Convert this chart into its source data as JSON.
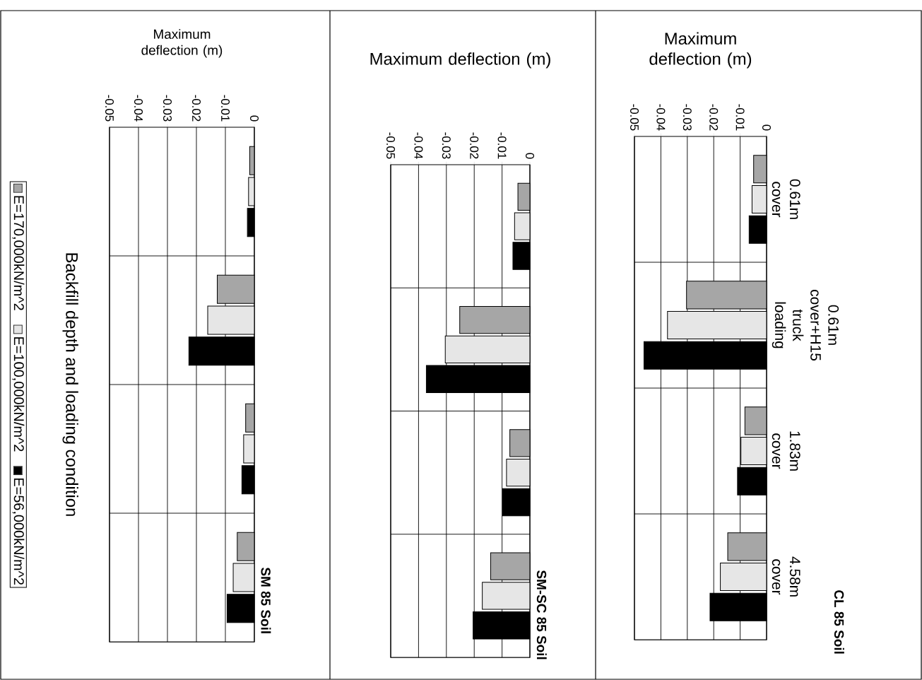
{
  "chart_data": [
    {
      "type": "bar",
      "orientation": "horizontal",
      "title": "CL 85 Soil",
      "xlabel": "Maximum deflection (m)",
      "categories": [
        "0.61m cover",
        "0.61m cover+H15 truck loading",
        "1.83m cover",
        "4.58m cover"
      ],
      "xlim": [
        -0.05,
        0
      ],
      "xticks": [
        -0.05,
        -0.04,
        -0.03,
        -0.02,
        -0.01,
        0
      ],
      "grid": true,
      "series": [
        {
          "color": "#a6a6a6",
          "values": [
            -0.0049,
            -0.0303,
            -0.0082,
            -0.0147
          ]
        },
        {
          "color": "#e6e6e6",
          "values": [
            -0.0055,
            -0.0375,
            -0.0097,
            -0.0175
          ]
        },
        {
          "color": "#000000",
          "values": [
            -0.0066,
            -0.0464,
            -0.011,
            -0.0214
          ]
        }
      ]
    },
    {
      "type": "bar",
      "orientation": "horizontal",
      "title": "SM-SC 85 Soil",
      "xlabel": "Maximum deflection (m)",
      "categories": [
        null,
        null,
        null,
        null
      ],
      "tick_labels": "x",
      "xlim": [
        -0.05,
        0
      ],
      "xticks": [
        -0.05,
        -0.04,
        -0.03,
        -0.02,
        -0.01,
        0
      ],
      "grid": true,
      "series": [
        {
          "color": "#a6a6a6",
          "values": [
            -0.0043,
            -0.0252,
            -0.0072,
            -0.0141
          ]
        },
        {
          "color": "#e6e6e6",
          "values": [
            -0.0055,
            -0.0304,
            -0.0084,
            -0.0171
          ]
        },
        {
          "color": "#000000",
          "values": [
            -0.0061,
            -0.0372,
            -0.0098,
            -0.0204
          ]
        }
      ]
    },
    {
      "type": "bar",
      "orientation": "horizontal",
      "title": "SM 85 Soil",
      "xlabel": "Maximum deflection (m)",
      "ylabel": "Backfill depth and loading condition",
      "categories": [
        null,
        null,
        null,
        null
      ],
      "tick_labels": "x",
      "xlim": [
        -0.05,
        0
      ],
      "xticks": [
        -0.05,
        -0.04,
        -0.03,
        -0.02,
        -0.01,
        0
      ],
      "grid": true,
      "legend": "left",
      "series": [
        {
          "name": "E=170,000kN/m^2",
          "color": "#a6a6a6",
          "values": [
            -0.0016,
            -0.0128,
            -0.003,
            -0.0059
          ]
        },
        {
          "name": "E=100,000kN/m^2",
          "color": "#e6e6e6",
          "values": [
            -0.002,
            -0.0161,
            -0.0037,
            -0.0073
          ]
        },
        {
          "name": "E=56,000kN/m^2",
          "color": "#000000",
          "values": [
            -0.0024,
            -0.0226,
            -0.0043,
            -0.0094
          ]
        }
      ]
    }
  ]
}
